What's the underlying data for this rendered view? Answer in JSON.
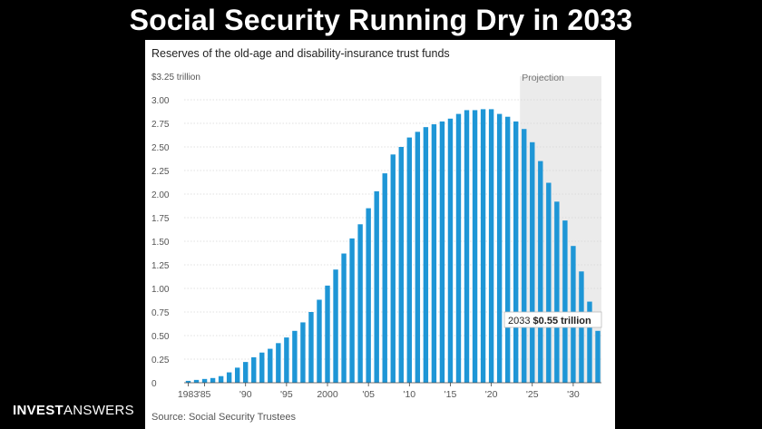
{
  "slide": {
    "title": "Social Security Running Dry in 2033"
  },
  "brand": {
    "bold": "INVEST",
    "light": "ANSWERS"
  },
  "chart_data": {
    "type": "bar",
    "title": "Reserves of the old-age and disability-insurance trust funds",
    "source": "Source: Social Security Trustees",
    "y_unit_label": "$3.25 trillion",
    "ylim": [
      0,
      3.25
    ],
    "y_ticks": [
      {
        "value": 3.25,
        "label": "$3.25 trillion"
      },
      {
        "value": 3.0,
        "label": "3.00"
      },
      {
        "value": 2.75,
        "label": "2.75"
      },
      {
        "value": 2.5,
        "label": "2.50"
      },
      {
        "value": 2.25,
        "label": "2.25"
      },
      {
        "value": 2.0,
        "label": "2.00"
      },
      {
        "value": 1.75,
        "label": "1.75"
      },
      {
        "value": 1.5,
        "label": "1.50"
      },
      {
        "value": 1.25,
        "label": "1.25"
      },
      {
        "value": 1.0,
        "label": "1.00"
      },
      {
        "value": 0.75,
        "label": "0.75"
      },
      {
        "value": 0.5,
        "label": "0.50"
      },
      {
        "value": 0.25,
        "label": "0.25"
      },
      {
        "value": 0,
        "label": "0"
      }
    ],
    "x_ticks": [
      {
        "year": 1983,
        "label": "1983"
      },
      {
        "year": 1985,
        "label": "'85"
      },
      {
        "year": 1990,
        "label": "'90"
      },
      {
        "year": 1995,
        "label": "'95"
      },
      {
        "year": 2000,
        "label": "2000"
      },
      {
        "year": 2005,
        "label": "'05"
      },
      {
        "year": 2010,
        "label": "'10"
      },
      {
        "year": 2015,
        "label": "'15"
      },
      {
        "year": 2020,
        "label": "'20"
      },
      {
        "year": 2025,
        "label": "'25"
      },
      {
        "year": 2030,
        "label": "'30"
      }
    ],
    "x": [
      1983,
      1984,
      1985,
      1986,
      1987,
      1988,
      1989,
      1990,
      1991,
      1992,
      1993,
      1994,
      1995,
      1996,
      1997,
      1998,
      1999,
      2000,
      2001,
      2002,
      2003,
      2004,
      2005,
      2006,
      2007,
      2008,
      2009,
      2010,
      2011,
      2012,
      2013,
      2014,
      2015,
      2016,
      2017,
      2018,
      2019,
      2020,
      2021,
      2022,
      2023,
      2024,
      2025,
      2026,
      2027,
      2028,
      2029,
      2030,
      2031,
      2032,
      2033
    ],
    "values": [
      0.02,
      0.03,
      0.04,
      0.05,
      0.07,
      0.11,
      0.16,
      0.22,
      0.27,
      0.32,
      0.36,
      0.42,
      0.48,
      0.55,
      0.64,
      0.75,
      0.88,
      1.03,
      1.2,
      1.37,
      1.53,
      1.68,
      1.85,
      2.03,
      2.22,
      2.42,
      2.5,
      2.6,
      2.66,
      2.71,
      2.74,
      2.77,
      2.8,
      2.85,
      2.89,
      2.89,
      2.9,
      2.9,
      2.85,
      2.82,
      2.77,
      2.69,
      2.55,
      2.35,
      2.12,
      1.92,
      1.72,
      1.45,
      1.18,
      0.86,
      0.55
    ],
    "series_color": "#1e96d6",
    "projection": {
      "label": "Projection",
      "start_year": 2023.5,
      "end_year": 2033.5,
      "shade_color": "#ebebeb"
    },
    "callout": {
      "year": "2033",
      "value": "$0.55 trillion"
    },
    "grid": true
  }
}
